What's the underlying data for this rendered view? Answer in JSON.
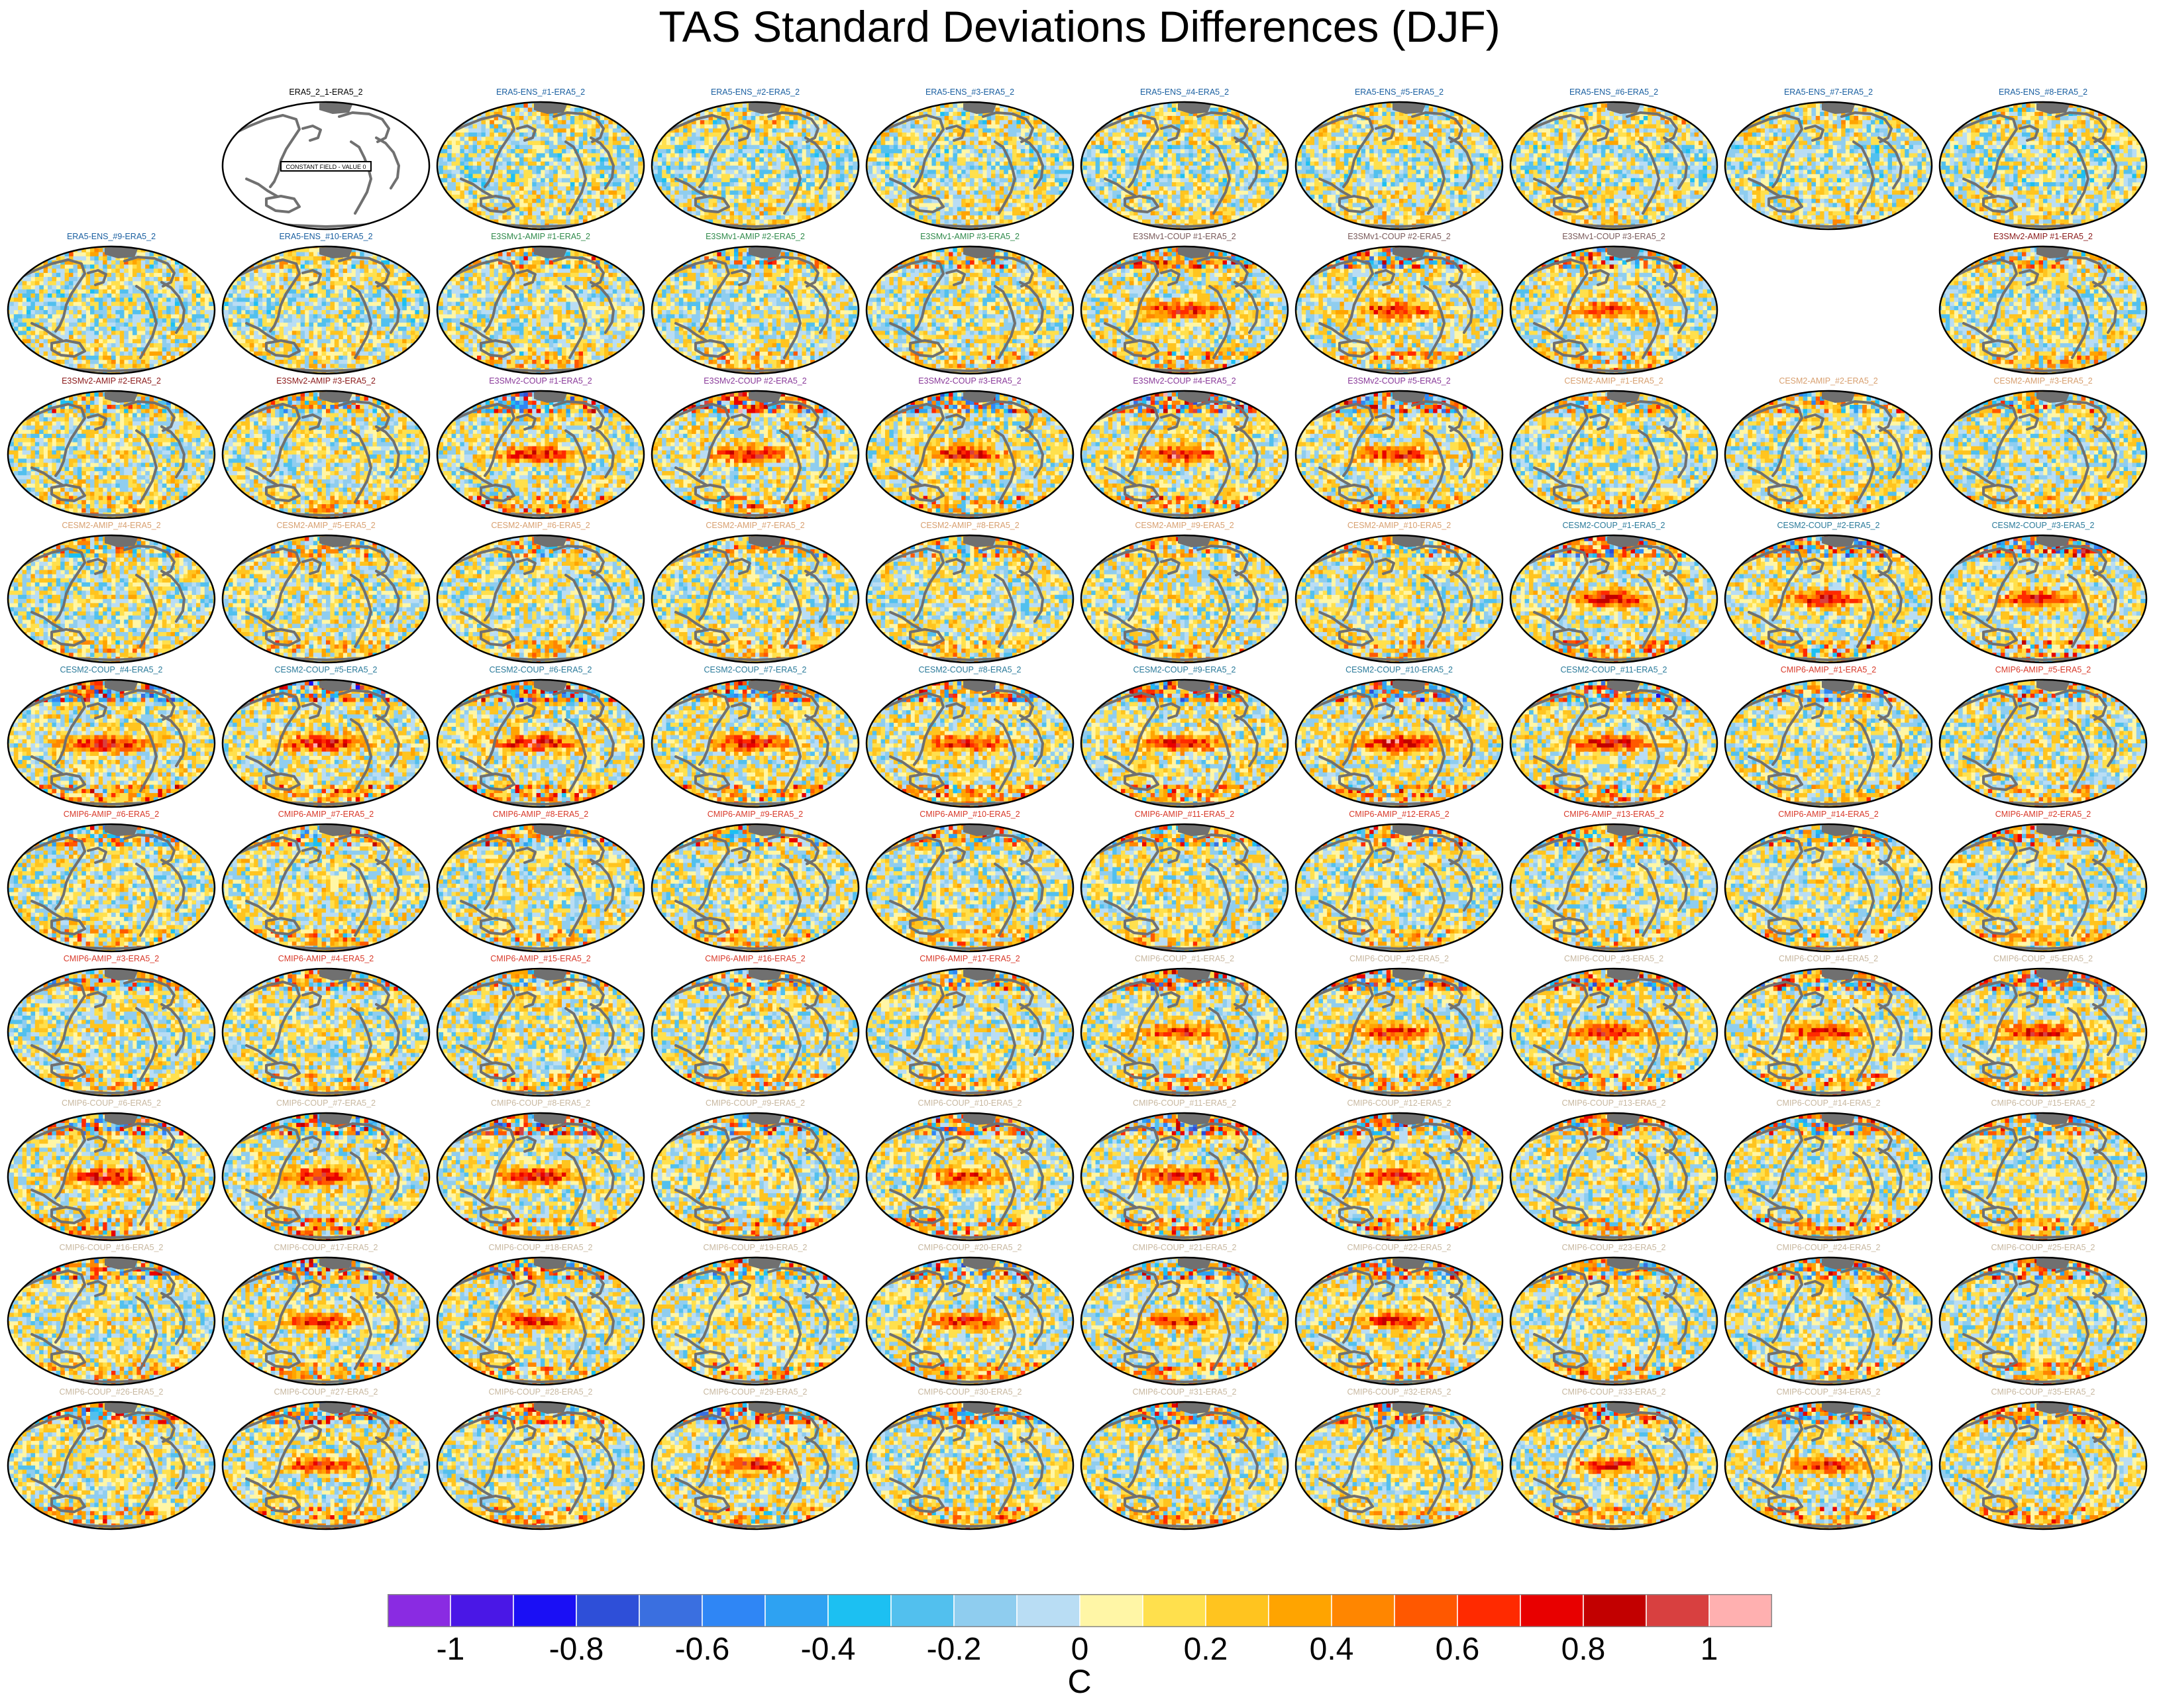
{
  "title": "TAS Standard Deviations Differences (DJF)",
  "chart_data": {
    "type": "heatmap",
    "description_type": "small-multiples map grid",
    "title": "TAS Standard Deviations Differences (DJF)",
    "projection": "mollweide",
    "colorbar": {
      "label": "C",
      "ticks": [
        "-1",
        "-0.8",
        "-0.6",
        "-0.4",
        "-0.2",
        "0",
        "0.2",
        "0.4",
        "0.6",
        "0.8",
        "1"
      ],
      "tick_values": [
        -1,
        -0.8,
        -0.6,
        -0.4,
        -0.2,
        0,
        0.2,
        0.4,
        0.6,
        0.8,
        1
      ],
      "range": [
        -1.1,
        1.1
      ],
      "colors": [
        "#8a2be2",
        "#4a17e6",
        "#1a0ff5",
        "#2e4fd8",
        "#3a6fe0",
        "#2f86f5",
        "#2ea2f2",
        "#1cc0f2",
        "#52c0ee",
        "#8fcdef",
        "#b9ddf4",
        "#fff6a6",
        "#ffe04d",
        "#ffc41f",
        "#ffa400",
        "#ff8600",
        "#ff5800",
        "#ff2a00",
        "#e80000",
        "#c20000",
        "#d84040",
        "#ffb0b0"
      ]
    },
    "panels": [
      {
        "label": "ERA5_2_1-ERA5_2",
        "row": 0,
        "col": 1,
        "color": "#000000",
        "constant": true,
        "note": "CONSTANT FIELD - VALUE 0"
      },
      {
        "label": "ERA5-ENS_#1-ERA5_2",
        "row": 0,
        "col": 2,
        "color": "#1a5fa0",
        "intensity": 0.25,
        "seed": 11
      },
      {
        "label": "ERA5-ENS_#2-ERA5_2",
        "row": 0,
        "col": 3,
        "color": "#1a5fa0",
        "intensity": 0.25,
        "seed": 12
      },
      {
        "label": "ERA5-ENS_#3-ERA5_2",
        "row": 0,
        "col": 4,
        "color": "#1a5fa0",
        "intensity": 0.25,
        "seed": 13
      },
      {
        "label": "ERA5-ENS_#4-ERA5_2",
        "row": 0,
        "col": 5,
        "color": "#1a5fa0",
        "intensity": 0.25,
        "seed": 14
      },
      {
        "label": "ERA5-ENS_#5-ERA5_2",
        "row": 0,
        "col": 6,
        "color": "#1a5fa0",
        "intensity": 0.25,
        "seed": 15
      },
      {
        "label": "ERA5-ENS_#6-ERA5_2",
        "row": 0,
        "col": 7,
        "color": "#1a5fa0",
        "intensity": 0.25,
        "seed": 16
      },
      {
        "label": "ERA5-ENS_#7-ERA5_2",
        "row": 0,
        "col": 8,
        "color": "#1a5fa0",
        "intensity": 0.25,
        "seed": 17
      },
      {
        "label": "ERA5-ENS_#8-ERA5_2",
        "row": 0,
        "col": 9,
        "color": "#1a5fa0",
        "intensity": 0.25,
        "seed": 18
      },
      {
        "label": "ERA5-ENS_#9-ERA5_2",
        "row": 1,
        "col": 0,
        "color": "#1a5fa0",
        "intensity": 0.25,
        "seed": 19
      },
      {
        "label": "ERA5-ENS_#10-ERA5_2",
        "row": 1,
        "col": 1,
        "color": "#1a5fa0",
        "intensity": 0.25,
        "seed": 20
      },
      {
        "label": "E3SMv1-AMIP #1-ERA5_2",
        "row": 1,
        "col": 2,
        "color": "#2f8a4a",
        "intensity": 0.55,
        "seed": 21
      },
      {
        "label": "E3SMv1-AMIP #2-ERA5_2",
        "row": 1,
        "col": 3,
        "color": "#2f8a4a",
        "intensity": 0.55,
        "seed": 22
      },
      {
        "label": "E3SMv1-AMIP #3-ERA5_2",
        "row": 1,
        "col": 4,
        "color": "#2f8a4a",
        "intensity": 0.55,
        "seed": 23
      },
      {
        "label": "E3SMv1-COUP #1-ERA5_2",
        "row": 1,
        "col": 5,
        "color": "#7a5a5a",
        "intensity": 0.8,
        "seed": 24
      },
      {
        "label": "E3SMv1-COUP #2-ERA5_2",
        "row": 1,
        "col": 6,
        "color": "#7a5a5a",
        "intensity": 0.8,
        "seed": 25
      },
      {
        "label": "E3SMv1-COUP #3-ERA5_2",
        "row": 1,
        "col": 7,
        "color": "#7a5a5a",
        "intensity": 0.75,
        "seed": 26
      },
      {
        "label": "E3SMv2-AMIP #1-ERA5_2",
        "row": 1,
        "col": 9,
        "color": "#8b1a1a",
        "intensity": 0.55,
        "seed": 27
      },
      {
        "label": "E3SMv2-AMIP #2-ERA5_2",
        "row": 2,
        "col": 0,
        "color": "#8b1a1a",
        "intensity": 0.55,
        "seed": 28
      },
      {
        "label": "E3SMv2-AMIP #3-ERA5_2",
        "row": 2,
        "col": 1,
        "color": "#8b1a1a",
        "intensity": 0.55,
        "seed": 29
      },
      {
        "label": "E3SMv2-COUP #1-ERA5_2",
        "row": 2,
        "col": 2,
        "color": "#8a3a9a",
        "intensity": 0.8,
        "seed": 30
      },
      {
        "label": "E3SMv2-COUP #2-ERA5_2",
        "row": 2,
        "col": 3,
        "color": "#8a3a9a",
        "intensity": 0.85,
        "seed": 31
      },
      {
        "label": "E3SMv2-COUP #3-ERA5_2",
        "row": 2,
        "col": 4,
        "color": "#8a3a9a",
        "intensity": 0.85,
        "seed": 32
      },
      {
        "label": "E3SMv2-COUP #4-ERA5_2",
        "row": 2,
        "col": 5,
        "color": "#8a3a9a",
        "intensity": 0.85,
        "seed": 33
      },
      {
        "label": "E3SMv2-COUP #5-ERA5_2",
        "row": 2,
        "col": 6,
        "color": "#8a3a9a",
        "intensity": 0.8,
        "seed": 34
      },
      {
        "label": "CESM2-AMIP_#1-ERA5_2",
        "row": 2,
        "col": 7,
        "color": "#d8a070",
        "intensity": 0.5,
        "seed": 35
      },
      {
        "label": "CESM2-AMIP_#2-ERA5_2",
        "row": 2,
        "col": 8,
        "color": "#d8a070",
        "intensity": 0.5,
        "seed": 36
      },
      {
        "label": "CESM2-AMIP_#3-ERA5_2",
        "row": 2,
        "col": 9,
        "color": "#d8a070",
        "intensity": 0.5,
        "seed": 37
      },
      {
        "label": "CESM2-AMIP_#4-ERA5_2",
        "row": 3,
        "col": 0,
        "color": "#d8a070",
        "intensity": 0.5,
        "seed": 38
      },
      {
        "label": "CESM2-AMIP_#5-ERA5_2",
        "row": 3,
        "col": 1,
        "color": "#d8a070",
        "intensity": 0.5,
        "seed": 39
      },
      {
        "label": "CESM2-AMIP_#6-ERA5_2",
        "row": 3,
        "col": 2,
        "color": "#d8a070",
        "intensity": 0.5,
        "seed": 40
      },
      {
        "label": "CESM2-AMIP_#7-ERA5_2",
        "row": 3,
        "col": 3,
        "color": "#d8a070",
        "intensity": 0.5,
        "seed": 41
      },
      {
        "label": "CESM2-AMIP_#8-ERA5_2",
        "row": 3,
        "col": 4,
        "color": "#d8a070",
        "intensity": 0.5,
        "seed": 42
      },
      {
        "label": "CESM2-AMIP_#9-ERA5_2",
        "row": 3,
        "col": 5,
        "color": "#d8a070",
        "intensity": 0.5,
        "seed": 43
      },
      {
        "label": "CESM2-AMIP_#10-ERA5_2",
        "row": 3,
        "col": 6,
        "color": "#d8a070",
        "intensity": 0.5,
        "seed": 44
      },
      {
        "label": "CESM2-COUP_#1-ERA5_2",
        "row": 3,
        "col": 7,
        "color": "#2a7a9a",
        "intensity": 0.85,
        "seed": 45
      },
      {
        "label": "CESM2-COUP_#2-ERA5_2",
        "row": 3,
        "col": 8,
        "color": "#2a7a9a",
        "intensity": 0.85,
        "seed": 46
      },
      {
        "label": "CESM2-COUP_#3-ERA5_2",
        "row": 3,
        "col": 9,
        "color": "#2a7a9a",
        "intensity": 0.85,
        "seed": 47
      },
      {
        "label": "CESM2-COUP_#4-ERA5_2",
        "row": 4,
        "col": 0,
        "color": "#2a7a9a",
        "intensity": 0.9,
        "seed": 48
      },
      {
        "label": "CESM2-COUP_#5-ERA5_2",
        "row": 4,
        "col": 1,
        "color": "#2a7a9a",
        "intensity": 0.9,
        "seed": 49
      },
      {
        "label": "CESM2-COUP_#6-ERA5_2",
        "row": 4,
        "col": 2,
        "color": "#2a7a9a",
        "intensity": 0.9,
        "seed": 50
      },
      {
        "label": "CESM2-COUP_#7-ERA5_2",
        "row": 4,
        "col": 3,
        "color": "#2a7a9a",
        "intensity": 0.85,
        "seed": 51
      },
      {
        "label": "CESM2-COUP_#8-ERA5_2",
        "row": 4,
        "col": 4,
        "color": "#2a7a9a",
        "intensity": 0.85,
        "seed": 52
      },
      {
        "label": "CESM2-COUP_#9-ERA5_2",
        "row": 4,
        "col": 5,
        "color": "#2a7a9a",
        "intensity": 0.85,
        "seed": 53
      },
      {
        "label": "CESM2-COUP_#10-ERA5_2",
        "row": 4,
        "col": 6,
        "color": "#2a7a9a",
        "intensity": 0.9,
        "seed": 54
      },
      {
        "label": "CESM2-COUP_#11-ERA5_2",
        "row": 4,
        "col": 7,
        "color": "#2a7a9a",
        "intensity": 0.85,
        "seed": 55
      },
      {
        "label": "CMIP6-AMIP_#1-ERA5_2",
        "row": 4,
        "col": 8,
        "color": "#d83a2a",
        "intensity": 0.6,
        "seed": 56
      },
      {
        "label": "CMIP6-AMIP_#5-ERA5_2",
        "row": 4,
        "col": 9,
        "color": "#d83a2a",
        "intensity": 0.6,
        "seed": 57
      },
      {
        "label": "CMIP6-AMIP_#6-ERA5_2",
        "row": 5,
        "col": 0,
        "color": "#d83a2a",
        "intensity": 0.6,
        "seed": 58
      },
      {
        "label": "CMIP6-AMIP_#7-ERA5_2",
        "row": 5,
        "col": 1,
        "color": "#d83a2a",
        "intensity": 0.6,
        "seed": 59
      },
      {
        "label": "CMIP6-AMIP_#8-ERA5_2",
        "row": 5,
        "col": 2,
        "color": "#d83a2a",
        "intensity": 0.6,
        "seed": 60
      },
      {
        "label": "CMIP6-AMIP_#9-ERA5_2",
        "row": 5,
        "col": 3,
        "color": "#d83a2a",
        "intensity": 0.6,
        "seed": 61
      },
      {
        "label": "CMIP6-AMIP_#10-ERA5_2",
        "row": 5,
        "col": 4,
        "color": "#d83a2a",
        "intensity": 0.6,
        "seed": 62
      },
      {
        "label": "CMIP6-AMIP_#11-ERA5_2",
        "row": 5,
        "col": 5,
        "color": "#d83a2a",
        "intensity": 0.6,
        "seed": 63
      },
      {
        "label": "CMIP6-AMIP_#12-ERA5_2",
        "row": 5,
        "col": 6,
        "color": "#d83a2a",
        "intensity": 0.6,
        "seed": 64
      },
      {
        "label": "CMIP6-AMIP_#13-ERA5_2",
        "row": 5,
        "col": 7,
        "color": "#d83a2a",
        "intensity": 0.6,
        "seed": 65
      },
      {
        "label": "CMIP6-AMIP_#14-ERA5_2",
        "row": 5,
        "col": 8,
        "color": "#d83a2a",
        "intensity": 0.6,
        "seed": 66
      },
      {
        "label": "CMIP6-AMIP_#2-ERA5_2",
        "row": 5,
        "col": 9,
        "color": "#d83a2a",
        "intensity": 0.6,
        "seed": 67
      },
      {
        "label": "CMIP6-AMIP_#3-ERA5_2",
        "row": 6,
        "col": 0,
        "color": "#d83a2a",
        "intensity": 0.6,
        "seed": 68
      },
      {
        "label": "CMIP6-AMIP_#4-ERA5_2",
        "row": 6,
        "col": 1,
        "color": "#d83a2a",
        "intensity": 0.6,
        "seed": 69
      },
      {
        "label": "CMIP6-AMIP_#15-ERA5_2",
        "row": 6,
        "col": 2,
        "color": "#d83a2a",
        "intensity": 0.6,
        "seed": 70
      },
      {
        "label": "CMIP6-AMIP_#16-ERA5_2",
        "row": 6,
        "col": 3,
        "color": "#d83a2a",
        "intensity": 0.6,
        "seed": 71
      },
      {
        "label": "CMIP6-AMIP_#17-ERA5_2",
        "row": 6,
        "col": 4,
        "color": "#d83a2a",
        "intensity": 0.6,
        "seed": 72
      },
      {
        "label": "CMIP6-COUP_#1-ERA5_2",
        "row": 6,
        "col": 5,
        "color": "#c8b8a0",
        "intensity": 0.75,
        "seed": 73
      },
      {
        "label": "CMIP6-COUP_#2-ERA5_2",
        "row": 6,
        "col": 6,
        "color": "#c8b8a0",
        "intensity": 0.8,
        "seed": 74
      },
      {
        "label": "CMIP6-COUP_#3-ERA5_2",
        "row": 6,
        "col": 7,
        "color": "#c8b8a0",
        "intensity": 0.8,
        "seed": 75
      },
      {
        "label": "CMIP6-COUP_#4-ERA5_2",
        "row": 6,
        "col": 8,
        "color": "#c8b8a0",
        "intensity": 0.8,
        "seed": 76
      },
      {
        "label": "CMIP6-COUP_#5-ERA5_2",
        "row": 6,
        "col": 9,
        "color": "#c8b8a0",
        "intensity": 0.85,
        "seed": 77
      },
      {
        "label": "CMIP6-COUP_#6-ERA5_2",
        "row": 7,
        "col": 0,
        "color": "#c8b8a0",
        "intensity": 0.85,
        "seed": 78
      },
      {
        "label": "CMIP6-COUP_#7-ERA5_2",
        "row": 7,
        "col": 1,
        "color": "#c8b8a0",
        "intensity": 0.9,
        "seed": 79
      },
      {
        "label": "CMIP6-COUP_#8-ERA5_2",
        "row": 7,
        "col": 2,
        "color": "#c8b8a0",
        "intensity": 0.85,
        "seed": 80
      },
      {
        "label": "CMIP6-COUP_#9-ERA5_2",
        "row": 7,
        "col": 3,
        "color": "#c8b8a0",
        "intensity": 0.7,
        "seed": 81
      },
      {
        "label": "CMIP6-COUP_#10-ERA5_2",
        "row": 7,
        "col": 4,
        "color": "#c8b8a0",
        "intensity": 0.75,
        "seed": 82
      },
      {
        "label": "CMIP6-COUP_#11-ERA5_2",
        "row": 7,
        "col": 5,
        "color": "#c8b8a0",
        "intensity": 0.85,
        "seed": 83
      },
      {
        "label": "CMIP6-COUP_#12-ERA5_2",
        "row": 7,
        "col": 6,
        "color": "#c8b8a0",
        "intensity": 0.8,
        "seed": 84
      },
      {
        "label": "CMIP6-COUP_#13-ERA5_2",
        "row": 7,
        "col": 7,
        "color": "#c8b8a0",
        "intensity": 0.65,
        "seed": 85
      },
      {
        "label": "CMIP6-COUP_#14-ERA5_2",
        "row": 7,
        "col": 8,
        "color": "#c8b8a0",
        "intensity": 0.7,
        "seed": 86
      },
      {
        "label": "CMIP6-COUP_#15-ERA5_2",
        "row": 7,
        "col": 9,
        "color": "#c8b8a0",
        "intensity": 0.7,
        "seed": 87
      },
      {
        "label": "CMIP6-COUP_#16-ERA5_2",
        "row": 8,
        "col": 0,
        "color": "#c8b8a0",
        "intensity": 0.7,
        "seed": 88
      },
      {
        "label": "CMIP6-COUP_#17-ERA5_2",
        "row": 8,
        "col": 1,
        "color": "#c8b8a0",
        "intensity": 0.75,
        "seed": 89
      },
      {
        "label": "CMIP6-COUP_#18-ERA5_2",
        "row": 8,
        "col": 2,
        "color": "#c8b8a0",
        "intensity": 0.75,
        "seed": 90
      },
      {
        "label": "CMIP6-COUP_#19-ERA5_2",
        "row": 8,
        "col": 3,
        "color": "#c8b8a0",
        "intensity": 0.7,
        "seed": 91
      },
      {
        "label": "CMIP6-COUP_#20-ERA5_2",
        "row": 8,
        "col": 4,
        "color": "#c8b8a0",
        "intensity": 0.75,
        "seed": 92
      },
      {
        "label": "CMIP6-COUP_#21-ERA5_2",
        "row": 8,
        "col": 5,
        "color": "#c8b8a0",
        "intensity": 0.75,
        "seed": 93
      },
      {
        "label": "CMIP6-COUP_#22-ERA5_2",
        "row": 8,
        "col": 6,
        "color": "#c8b8a0",
        "intensity": 0.75,
        "seed": 94
      },
      {
        "label": "CMIP6-COUP_#23-ERA5_2",
        "row": 8,
        "col": 7,
        "color": "#c8b8a0",
        "intensity": 0.7,
        "seed": 95
      },
      {
        "label": "CMIP6-COUP_#24-ERA5_2",
        "row": 8,
        "col": 8,
        "color": "#c8b8a0",
        "intensity": 0.7,
        "seed": 96
      },
      {
        "label": "CMIP6-COUP_#25-ERA5_2",
        "row": 8,
        "col": 9,
        "color": "#c8b8a0",
        "intensity": 0.7,
        "seed": 97
      },
      {
        "label": "CMIP6-COUP_#26-ERA5_2",
        "row": 9,
        "col": 0,
        "color": "#c8b8a0",
        "intensity": 0.7,
        "seed": 98
      },
      {
        "label": "CMIP6-COUP_#27-ERA5_2",
        "row": 9,
        "col": 1,
        "color": "#c8b8a0",
        "intensity": 0.75,
        "seed": 99
      },
      {
        "label": "CMIP6-COUP_#28-ERA5_2",
        "row": 9,
        "col": 2,
        "color": "#c8b8a0",
        "intensity": 0.7,
        "seed": 100
      },
      {
        "label": "CMIP6-COUP_#29-ERA5_2",
        "row": 9,
        "col": 3,
        "color": "#c8b8a0",
        "intensity": 0.8,
        "seed": 101
      },
      {
        "label": "CMIP6-COUP_#30-ERA5_2",
        "row": 9,
        "col": 4,
        "color": "#c8b8a0",
        "intensity": 0.7,
        "seed": 102
      },
      {
        "label": "CMIP6-COUP_#31-ERA5_2",
        "row": 9,
        "col": 5,
        "color": "#c8b8a0",
        "intensity": 0.7,
        "seed": 103
      },
      {
        "label": "CMIP6-COUP_#32-ERA5_2",
        "row": 9,
        "col": 6,
        "color": "#c8b8a0",
        "intensity": 0.7,
        "seed": 104
      },
      {
        "label": "CMIP6-COUP_#33-ERA5_2",
        "row": 9,
        "col": 7,
        "color": "#c8b8a0",
        "intensity": 0.75,
        "seed": 105
      },
      {
        "label": "CMIP6-COUP_#34-ERA5_2",
        "row": 9,
        "col": 8,
        "color": "#c8b8a0",
        "intensity": 0.8,
        "seed": 106
      },
      {
        "label": "CMIP6-COUP_#35-ERA5_2",
        "row": 9,
        "col": 9,
        "color": "#c8b8a0",
        "intensity": 0.7,
        "seed": 107
      }
    ]
  }
}
